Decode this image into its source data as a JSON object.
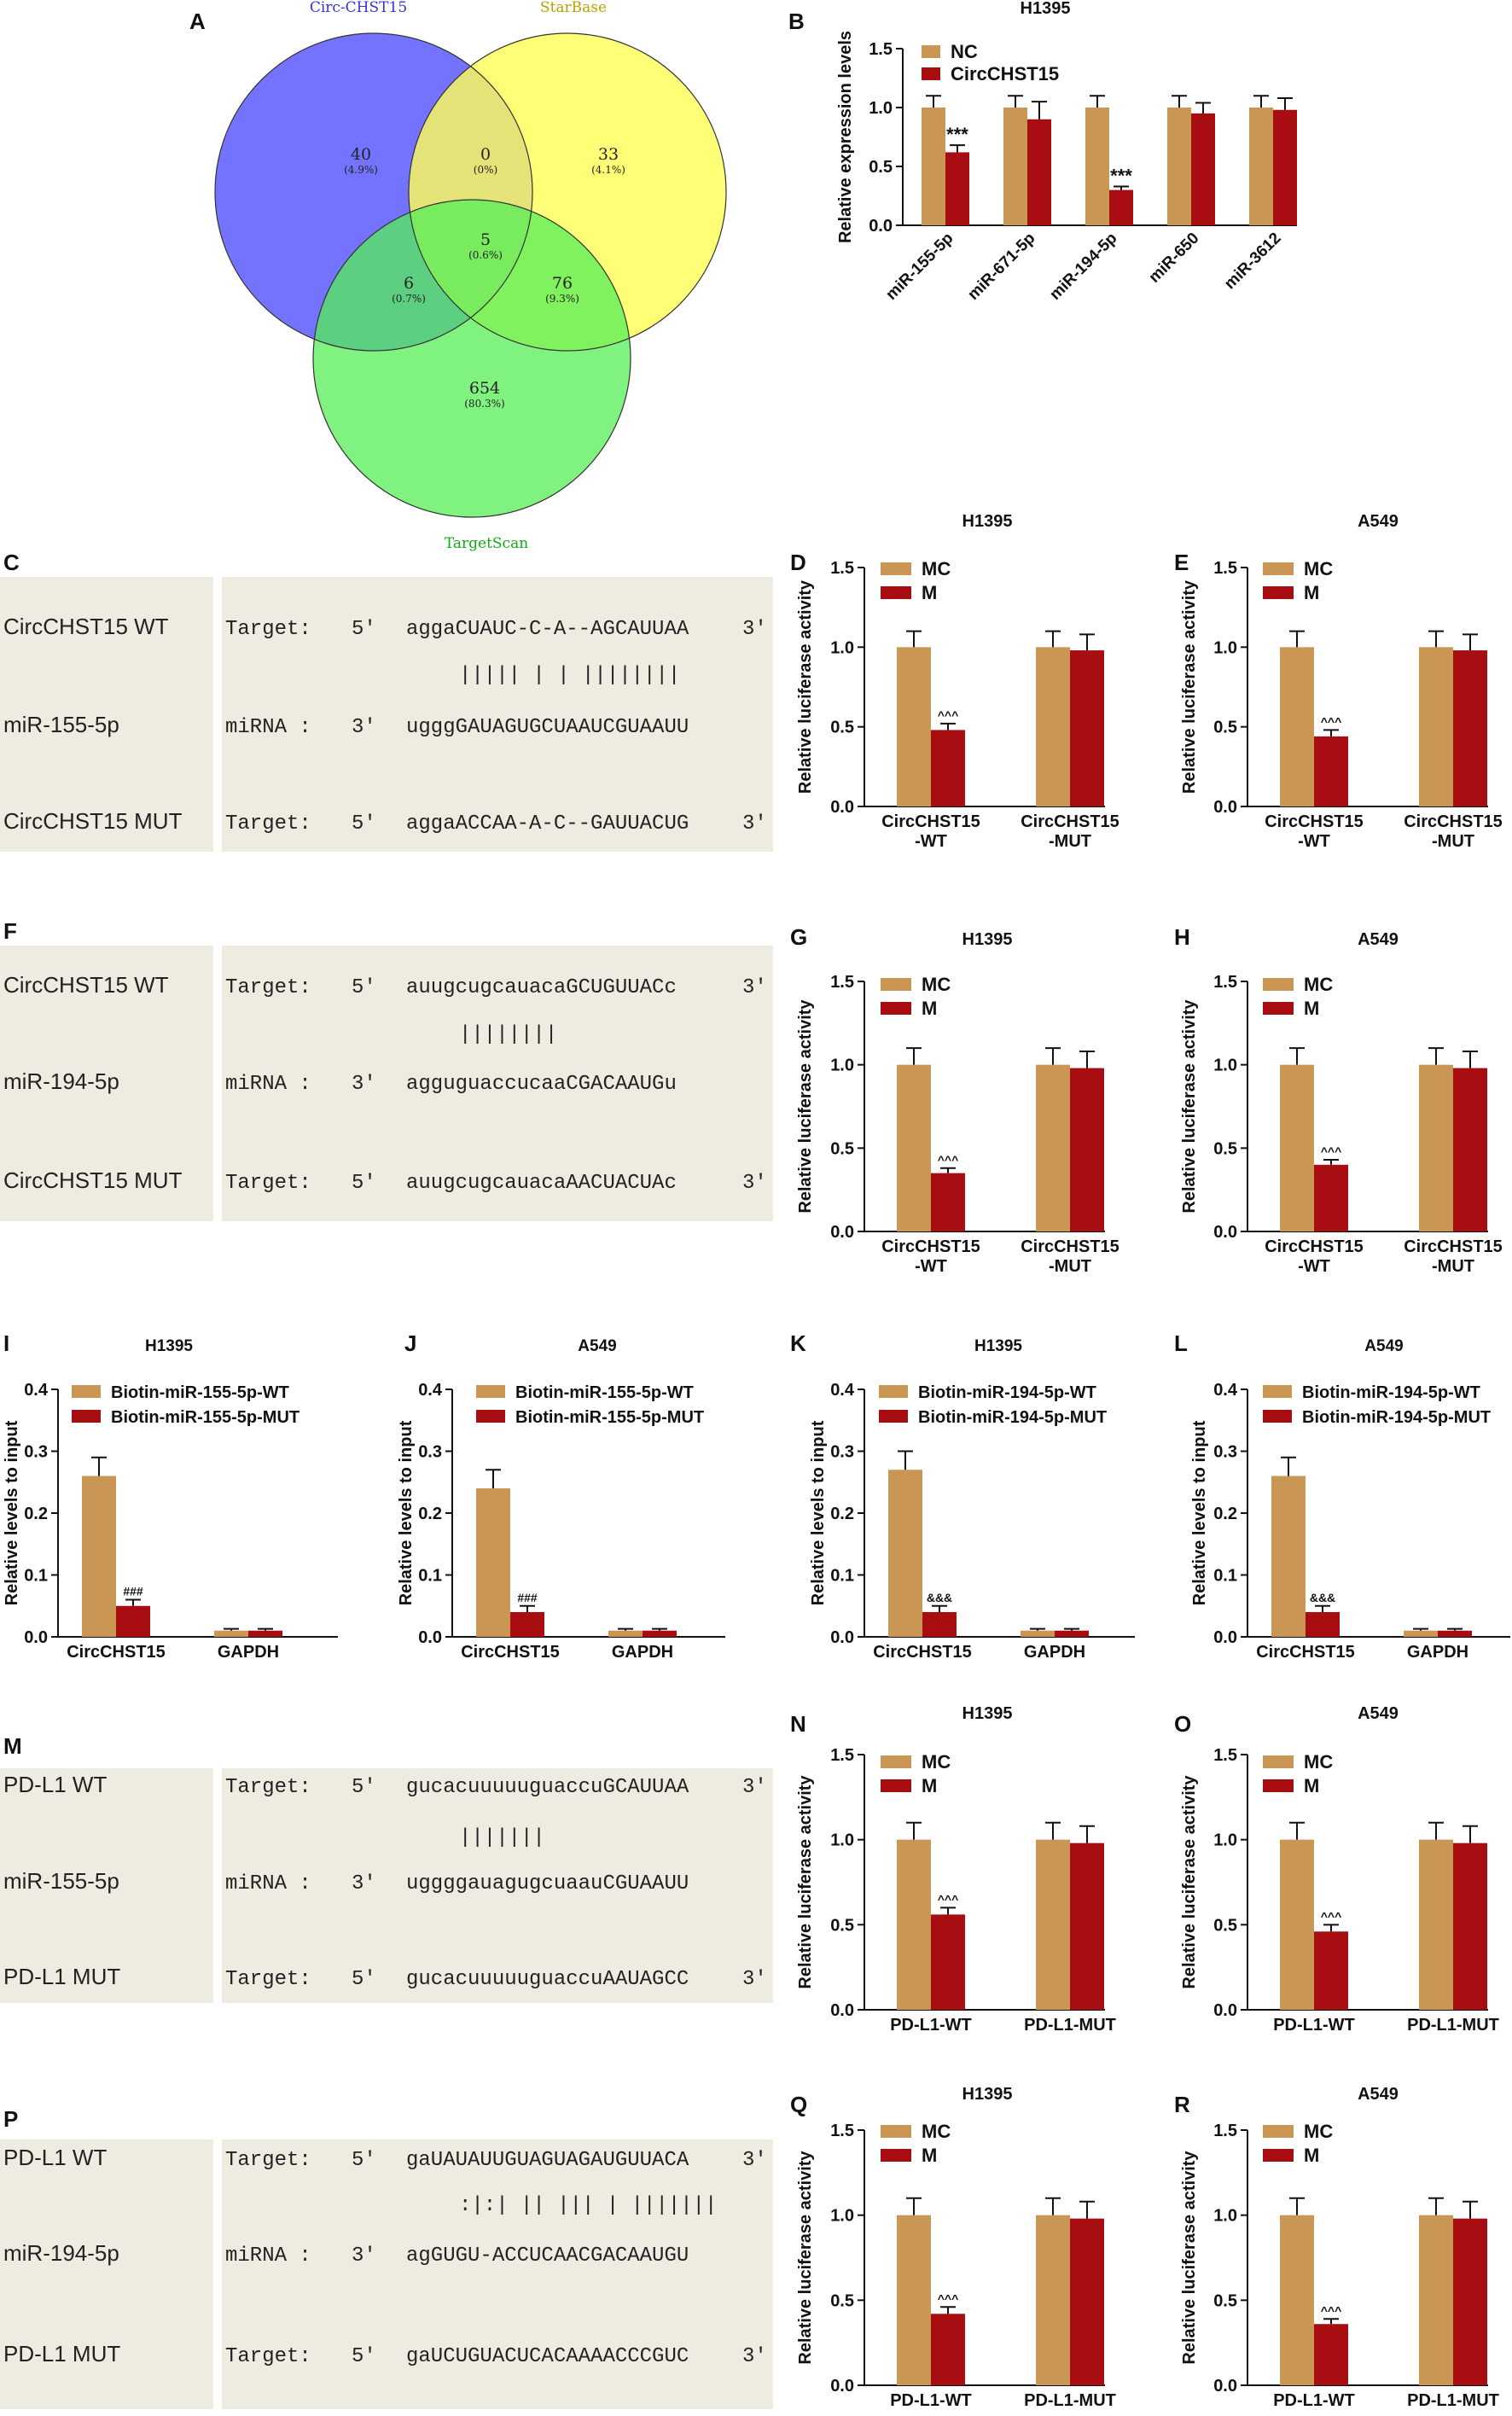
{
  "colors": {
    "nc": "#c99654",
    "circ": "#a80d12",
    "seqBg": "#eeebe0",
    "venn_a": "#7b7bff",
    "venn_b": "#ffff66",
    "venn_c": "#66ee66"
  },
  "panels": {
    "A": "A",
    "B": "B",
    "C": "C",
    "D": "D",
    "E": "E",
    "F": "F",
    "G": "G",
    "H": "H",
    "I": "I",
    "J": "J",
    "K": "K",
    "L": "L",
    "M": "M",
    "N": "N",
    "O": "O",
    "P": "P",
    "Q": "Q",
    "R": "R"
  },
  "venn": {
    "labels": {
      "a": "Circ-CHST15",
      "b": "StarBase",
      "c": "TargetScan"
    },
    "regions": [
      {
        "id": "a_only",
        "n": "40",
        "pct": "(4.9%)"
      },
      {
        "id": "ab",
        "n": "0",
        "pct": "(0%)"
      },
      {
        "id": "b_only",
        "n": "33",
        "pct": "(4.1%)"
      },
      {
        "id": "abc",
        "n": "5",
        "pct": "(0.6%)"
      },
      {
        "id": "ac",
        "n": "6",
        "pct": "(0.7%)"
      },
      {
        "id": "bc",
        "n": "76",
        "pct": "(9.3%)"
      },
      {
        "id": "c_only",
        "n": "654",
        "pct": "(80.3%)"
      }
    ]
  },
  "sequences": {
    "C": {
      "rows": [
        {
          "name": "CircCHST15 WT",
          "type": "Target:",
          "dir5": "5'",
          "seq": "aggaCUAUC-C-A--AGCAUUAA",
          "dir3": "3'"
        },
        {
          "pair": "||||| | | ||||||||"
        },
        {
          "name": "miR-155-5p",
          "type": "miRNA :",
          "dir5": "3'",
          "seq": "ugggGAUAGUGCUAAUCGUAAUU",
          "dir3": ""
        },
        {
          "name": "CircCHST15 MUT",
          "type": "Target:",
          "dir5": "5'",
          "seq": "aggaACCAA-A-C--GAUUACUG",
          "dir3": "3'"
        }
      ]
    },
    "F": {
      "rows": [
        {
          "name": "CircCHST15 WT",
          "type": "Target:",
          "dir5": "5'",
          "seq": "auugcugcauacaGCUGUUACc",
          "dir3": "3'"
        },
        {
          "pair": "||||||||"
        },
        {
          "name": "miR-194-5p",
          "type": "miRNA :",
          "dir5": "3'",
          "seq": "agguguaccucaaCGACAAUGu",
          "dir3": ""
        },
        {
          "name": "CircCHST15 MUT",
          "type": "Target:",
          "dir5": "5'",
          "seq": "auugcugcauacaAACUACUAc",
          "dir3": "3'"
        }
      ]
    },
    "M": {
      "rows": [
        {
          "name": "PD-L1 WT",
          "type": "Target:",
          "dir5": "5'",
          "seq": "gucacuuuuuguaccuGCAUUAA",
          "dir3": "3'"
        },
        {
          "pair": "|||||||"
        },
        {
          "name": "miR-155-5p",
          "type": "miRNA :",
          "dir5": "3'",
          "seq": "uggggauagugcuaauCGUAAUU",
          "dir3": ""
        },
        {
          "name": "PD-L1 MUT",
          "type": "Target:",
          "dir5": "5'",
          "seq": "gucacuuuuuguaccuAAUAGCC",
          "dir3": "3'"
        }
      ]
    },
    "P": {
      "rows": [
        {
          "name": "PD-L1 WT",
          "type": "Target:",
          "dir5": "5'",
          "seq": "gaUAUAUUGUAGUAGAUGUUACA",
          "dir3": "3'"
        },
        {
          "pair": ":|:| || ||| | |||||||"
        },
        {
          "name": "miR-194-5p",
          "type": "miRNA :",
          "dir5": "3'",
          "seq": "agGUGU-ACCUCAACGACAAUGU",
          "dir3": ""
        },
        {
          "name": "PD-L1 MUT",
          "type": "Target:",
          "dir5": "5'",
          "seq": "gaUCUGUACUCACAAAACCCGUC",
          "dir3": "3'"
        }
      ]
    }
  },
  "chart_data": [
    {
      "panel": "B",
      "type": "bar",
      "title": "H1395",
      "ylabel": "Relative expression levels",
      "ylim": [
        0,
        1.5
      ],
      "yticks": [
        "0.0",
        "0.5",
        "1.0",
        "1.5"
      ],
      "categories": [
        "miR-155-5p",
        "miR-671-5p",
        "miR-194-5p",
        "miR-650",
        "miR-3612"
      ],
      "series": [
        {
          "name": "NC",
          "values": [
            1.0,
            1.0,
            1.0,
            1.0,
            1.0
          ],
          "errors": [
            0.1,
            0.1,
            0.1,
            0.1,
            0.1
          ]
        },
        {
          "name": "CircCHST15",
          "values": [
            0.62,
            0.9,
            0.3,
            0.95,
            0.98
          ],
          "errors": [
            0.06,
            0.15,
            0.03,
            0.09,
            0.1
          ]
        }
      ],
      "annotations": [
        "***",
        "",
        "***",
        "",
        ""
      ]
    },
    {
      "panel": "D",
      "type": "bar",
      "title": "H1395",
      "ylabel": "Relative luciferase activity",
      "ylim": [
        0,
        1.5
      ],
      "yticks": [
        "0.0",
        "0.5",
        "1.0",
        "1.5"
      ],
      "categories": [
        "CircCHST15\n-WT",
        "CircCHST15\n-MUT"
      ],
      "series": [
        {
          "name": "MC",
          "values": [
            1.0,
            1.0
          ],
          "errors": [
            0.1,
            0.1
          ]
        },
        {
          "name": "M",
          "values": [
            0.48,
            0.98
          ],
          "errors": [
            0.04,
            0.1
          ]
        }
      ],
      "annotations": [
        "^^^",
        ""
      ]
    },
    {
      "panel": "E",
      "type": "bar",
      "title": "A549",
      "ylabel": "Relative luciferase activity",
      "ylim": [
        0,
        1.5
      ],
      "yticks": [
        "0.0",
        "0.5",
        "1.0",
        "1.5"
      ],
      "categories": [
        "CircCHST15\n-WT",
        "CircCHST15\n-MUT"
      ],
      "series": [
        {
          "name": "MC",
          "values": [
            1.0,
            1.0
          ],
          "errors": [
            0.1,
            0.1
          ]
        },
        {
          "name": "M",
          "values": [
            0.44,
            0.98
          ],
          "errors": [
            0.04,
            0.1
          ]
        }
      ],
      "annotations": [
        "^^^",
        ""
      ]
    },
    {
      "panel": "G",
      "type": "bar",
      "title": "H1395",
      "ylabel": "Relative luciferase activity",
      "ylim": [
        0,
        1.5
      ],
      "yticks": [
        "0.0",
        "0.5",
        "1.0",
        "1.5"
      ],
      "categories": [
        "CircCHST15\n-WT",
        "CircCHST15\n-MUT"
      ],
      "series": [
        {
          "name": "MC",
          "values": [
            1.0,
            1.0
          ],
          "errors": [
            0.1,
            0.1
          ]
        },
        {
          "name": "M",
          "values": [
            0.35,
            0.98
          ],
          "errors": [
            0.03,
            0.1
          ]
        }
      ],
      "annotations": [
        "^^^",
        ""
      ]
    },
    {
      "panel": "H",
      "type": "bar",
      "title": "A549",
      "ylabel": "Relative luciferase activity",
      "ylim": [
        0,
        1.5
      ],
      "yticks": [
        "0.0",
        "0.5",
        "1.0",
        "1.5"
      ],
      "categories": [
        "CircCHST15\n-WT",
        "CircCHST15\n-MUT"
      ],
      "series": [
        {
          "name": "MC",
          "values": [
            1.0,
            1.0
          ],
          "errors": [
            0.1,
            0.1
          ]
        },
        {
          "name": "M",
          "values": [
            0.4,
            0.98
          ],
          "errors": [
            0.03,
            0.1
          ]
        }
      ],
      "annotations": [
        "^^^",
        ""
      ]
    },
    {
      "panel": "I",
      "type": "bar",
      "title": "H1395",
      "ylabel": "Relative levels to input",
      "ylim": [
        0,
        0.4
      ],
      "yticks": [
        "0.0",
        "0.1",
        "0.2",
        "0.3",
        "0.4"
      ],
      "categories": [
        "CircCHST15",
        "GAPDH"
      ],
      "series": [
        {
          "name": "Biotin-miR-155-5p-WT",
          "values": [
            0.26,
            0.01
          ],
          "errors": [
            0.03,
            0.003
          ]
        },
        {
          "name": "Biotin-miR-155-5p-MUT",
          "values": [
            0.05,
            0.01
          ],
          "errors": [
            0.01,
            0.003
          ]
        }
      ],
      "annotations": [
        "###",
        ""
      ]
    },
    {
      "panel": "J",
      "type": "bar",
      "title": "A549",
      "ylabel": "Relative levels to input",
      "ylim": [
        0,
        0.4
      ],
      "yticks": [
        "0.0",
        "0.1",
        "0.2",
        "0.3",
        "0.4"
      ],
      "categories": [
        "CircCHST15",
        "GAPDH"
      ],
      "series": [
        {
          "name": "Biotin-miR-155-5p-WT",
          "values": [
            0.24,
            0.01
          ],
          "errors": [
            0.03,
            0.003
          ]
        },
        {
          "name": "Biotin-miR-155-5p-MUT",
          "values": [
            0.04,
            0.01
          ],
          "errors": [
            0.01,
            0.003
          ]
        }
      ],
      "annotations": [
        "###",
        ""
      ]
    },
    {
      "panel": "K",
      "type": "bar",
      "title": "H1395",
      "ylabel": "Relative levels to input",
      "ylim": [
        0,
        0.4
      ],
      "yticks": [
        "0.0",
        "0.1",
        "0.2",
        "0.3",
        "0.4"
      ],
      "categories": [
        "CircCHST15",
        "GAPDH"
      ],
      "series": [
        {
          "name": "Biotin-miR-194-5p-WT",
          "values": [
            0.27,
            0.01
          ],
          "errors": [
            0.03,
            0.003
          ]
        },
        {
          "name": "Biotin-miR-194-5p-MUT",
          "values": [
            0.04,
            0.01
          ],
          "errors": [
            0.01,
            0.003
          ]
        }
      ],
      "annotations": [
        "&&&",
        ""
      ]
    },
    {
      "panel": "L",
      "type": "bar",
      "title": "A549",
      "ylabel": "Relative levels to input",
      "ylim": [
        0,
        0.4
      ],
      "yticks": [
        "0.0",
        "0.1",
        "0.2",
        "0.3",
        "0.4"
      ],
      "categories": [
        "CircCHST15",
        "GAPDH"
      ],
      "series": [
        {
          "name": "Biotin-miR-194-5p-WT",
          "values": [
            0.26,
            0.01
          ],
          "errors": [
            0.03,
            0.003
          ]
        },
        {
          "name": "Biotin-miR-194-5p-MUT",
          "values": [
            0.04,
            0.01
          ],
          "errors": [
            0.01,
            0.003
          ]
        }
      ],
      "annotations": [
        "&&&",
        ""
      ]
    },
    {
      "panel": "N",
      "type": "bar",
      "title": "H1395",
      "ylabel": "Relative luciferase activity",
      "ylim": [
        0,
        1.5
      ],
      "yticks": [
        "0.0",
        "0.5",
        "1.0",
        "1.5"
      ],
      "categories": [
        "PD-L1-WT",
        "PD-L1-MUT"
      ],
      "series": [
        {
          "name": "MC",
          "values": [
            1.0,
            1.0
          ],
          "errors": [
            0.1,
            0.1
          ]
        },
        {
          "name": "M",
          "values": [
            0.56,
            0.98
          ],
          "errors": [
            0.04,
            0.1
          ]
        }
      ],
      "annotations": [
        "^^^",
        ""
      ]
    },
    {
      "panel": "O",
      "type": "bar",
      "title": "A549",
      "ylabel": "Relative luciferase activity",
      "ylim": [
        0,
        1.5
      ],
      "yticks": [
        "0.0",
        "0.5",
        "1.0",
        "1.5"
      ],
      "categories": [
        "PD-L1-WT",
        "PD-L1-MUT"
      ],
      "series": [
        {
          "name": "MC",
          "values": [
            1.0,
            1.0
          ],
          "errors": [
            0.1,
            0.1
          ]
        },
        {
          "name": "M",
          "values": [
            0.46,
            0.98
          ],
          "errors": [
            0.04,
            0.1
          ]
        }
      ],
      "annotations": [
        "^^^",
        ""
      ]
    },
    {
      "panel": "Q",
      "type": "bar",
      "title": "H1395",
      "ylabel": "Relative luciferase activity",
      "ylim": [
        0,
        1.5
      ],
      "yticks": [
        "0.0",
        "0.5",
        "1.0",
        "1.5"
      ],
      "categories": [
        "PD-L1-WT",
        "PD-L1-MUT"
      ],
      "series": [
        {
          "name": "MC",
          "values": [
            1.0,
            1.0
          ],
          "errors": [
            0.1,
            0.1
          ]
        },
        {
          "name": "M",
          "values": [
            0.42,
            0.98
          ],
          "errors": [
            0.04,
            0.1
          ]
        }
      ],
      "annotations": [
        "^^^",
        ""
      ]
    },
    {
      "panel": "R",
      "type": "bar",
      "title": "A549",
      "ylabel": "Relative luciferase activity",
      "ylim": [
        0,
        1.5
      ],
      "yticks": [
        "0.0",
        "0.5",
        "1.0",
        "1.5"
      ],
      "categories": [
        "PD-L1-WT",
        "PD-L1-MUT"
      ],
      "series": [
        {
          "name": "MC",
          "values": [
            1.0,
            1.0
          ],
          "errors": [
            0.1,
            0.1
          ]
        },
        {
          "name": "M",
          "values": [
            0.36,
            0.98
          ],
          "errors": [
            0.03,
            0.1
          ]
        }
      ],
      "annotations": [
        "^^^",
        ""
      ]
    }
  ]
}
